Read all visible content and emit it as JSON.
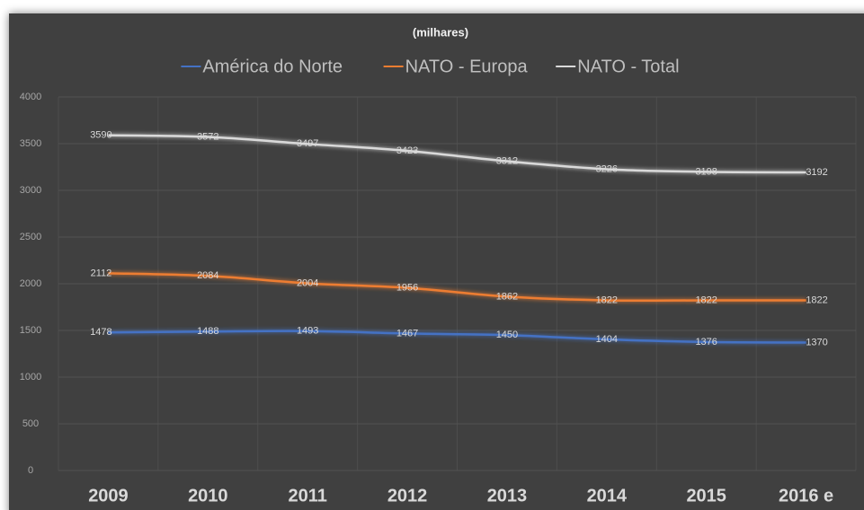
{
  "chart_data": {
    "type": "line",
    "title": "(milhares)",
    "categories": [
      "2009",
      "2010",
      "2011",
      "2012",
      "2013",
      "2014",
      "2015",
      "2016 e"
    ],
    "series": [
      {
        "name": "América do Norte",
        "color": "#4472c4",
        "values": [
          1478,
          1488,
          1493,
          1467,
          1450,
          1404,
          1376,
          1370
        ]
      },
      {
        "name": "NATO - Europa",
        "color": "#ed7d31",
        "values": [
          2112,
          2084,
          2004,
          1956,
          1862,
          1822,
          1822,
          1822
        ]
      },
      {
        "name": "NATO - Total",
        "color": "#d9d9d9",
        "values": [
          3590,
          3572,
          3497,
          3423,
          3312,
          3226,
          3198,
          3192
        ]
      }
    ],
    "ylim": [
      0,
      4000
    ],
    "yticks": [
      0,
      500,
      1000,
      1500,
      2000,
      2500,
      3000,
      3500,
      4000
    ],
    "grid": true,
    "legend": "top"
  }
}
